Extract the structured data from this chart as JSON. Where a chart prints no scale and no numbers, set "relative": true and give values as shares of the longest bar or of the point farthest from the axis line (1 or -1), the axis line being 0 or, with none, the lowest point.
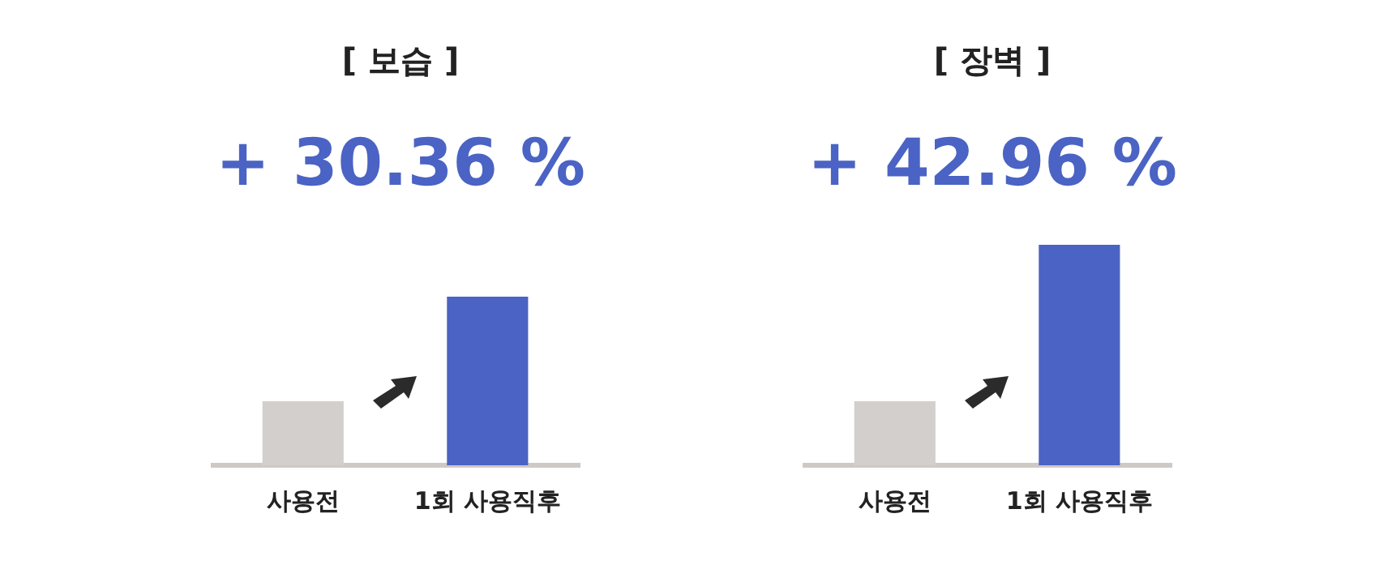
{
  "chart_data": [
    {
      "type": "bar",
      "title": "[ 보습 ]",
      "subtitle": "+ 30.36 %",
      "categories": [
        "사용전",
        "1회 사용직후"
      ],
      "values": [
        0.38,
        1
      ],
      "colors": [
        "#d3cfcc",
        "#4a63c4"
      ],
      "relative": true
    },
    {
      "type": "bar",
      "title": "[ 장벽 ]",
      "subtitle": "+ 42.96 %",
      "categories": [
        "사용전",
        "1회 사용직후"
      ],
      "values": [
        0.29,
        1
      ],
      "colors": [
        "#d3cfcc",
        "#4a63c4"
      ],
      "relative": true
    }
  ]
}
